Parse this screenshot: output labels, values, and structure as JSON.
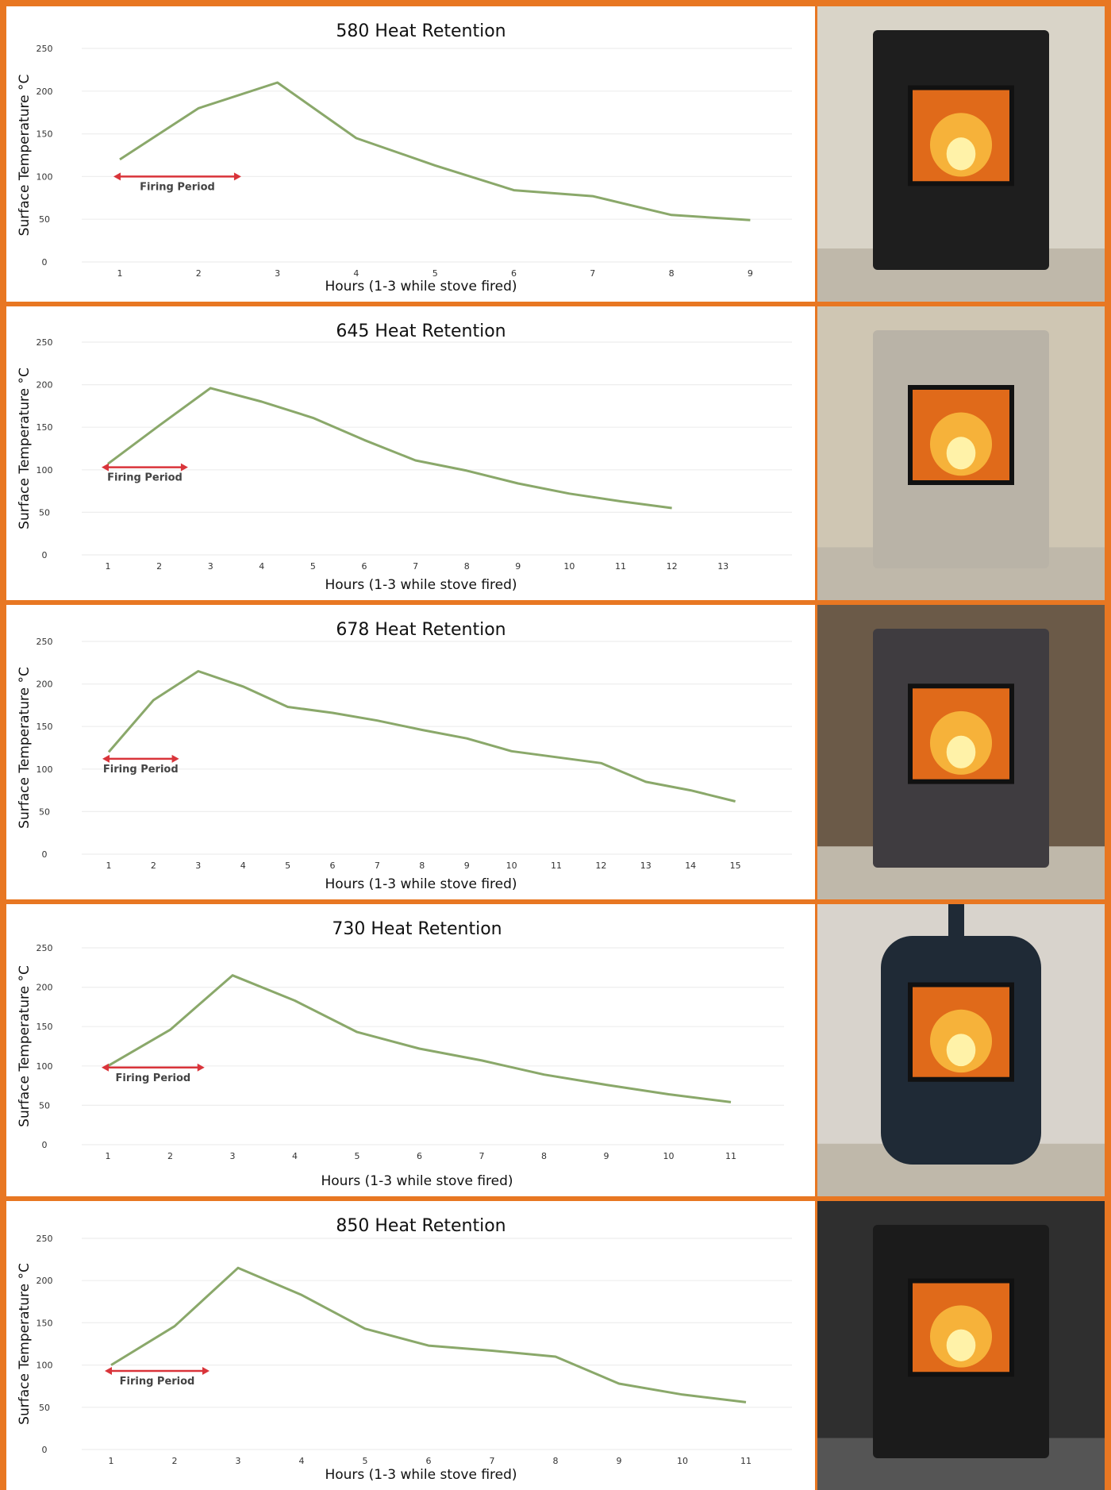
{
  "colors": {
    "border": "#e87722",
    "line": "#8aa86a",
    "arrow": "#d9343a",
    "grid": "#eeeeee",
    "tick_text": "#333333",
    "title_text": "#111111"
  },
  "chart_data": [
    {
      "type": "line",
      "title": "580 Heat Retention",
      "xlabel": "Hours (1-3 while stove fired)",
      "ylabel": "Surface Temperature °C",
      "x": [
        1,
        2,
        3,
        4,
        5,
        6,
        7,
        8,
        9
      ],
      "series": [
        {
          "values": [
            120,
            180,
            210,
            145,
            113,
            84,
            77,
            55,
            49
          ]
        }
      ],
      "ylim": [
        0,
        250
      ],
      "yticks": [
        0,
        50,
        100,
        150,
        200,
        250
      ],
      "grid": true,
      "annotation": {
        "text": "Firing Period",
        "from": 1,
        "to": 2.5,
        "y": 100
      },
      "photo": "black stove"
    },
    {
      "type": "line",
      "title": "645 Heat Retention",
      "xlabel": "Hours (1-3 while stove fired)",
      "ylabel": "Surface Temperature °C",
      "x": [
        1,
        2,
        3,
        4,
        5,
        6,
        7,
        8,
        9,
        10,
        11,
        12,
        13
      ],
      "series": [
        {
          "values": [
            107,
            152,
            196,
            180,
            161,
            135,
            111,
            99,
            84,
            72,
            63,
            55,
            null
          ]
        }
      ],
      "ylim": [
        0,
        250
      ],
      "yticks": [
        0,
        50,
        100,
        150,
        200,
        250
      ],
      "grid": true,
      "annotation": {
        "text": "Firing Period",
        "from": 1,
        "to": 2.5,
        "y": 103
      },
      "photo": "grey tiled stove"
    },
    {
      "type": "line",
      "title": "678 Heat Retention",
      "xlabel": "Hours (1-3 while stove fired)",
      "ylabel": "Surface Temperature °C",
      "x": [
        1,
        2,
        3,
        4,
        5,
        6,
        7,
        8,
        9,
        10,
        11,
        12,
        13,
        14,
        15
      ],
      "series": [
        {
          "values": [
            120,
            181,
            215,
            197,
            173,
            166,
            157,
            146,
            136,
            121,
            114,
            107,
            85,
            75,
            62
          ]
        }
      ],
      "ylim": [
        0,
        250
      ],
      "yticks": [
        0,
        50,
        100,
        150,
        200,
        250
      ],
      "grid": true,
      "annotation": {
        "text": "Firing Period",
        "from": 1,
        "to": 2.5,
        "y": 112
      },
      "photo": "dark tiled stove"
    },
    {
      "type": "line",
      "title": "730 Heat Retention",
      "xlabel": "Hours (1-3 while stove fired)",
      "ylabel": "Surface Temperature °C",
      "x": [
        1,
        2,
        3,
        4,
        5,
        6,
        7,
        8,
        9,
        10,
        11
      ],
      "series": [
        {
          "values": [
            100,
            146,
            215,
            183,
            143,
            122,
            107,
            89,
            76,
            64,
            54
          ]
        }
      ],
      "ylim": [
        0,
        250
      ],
      "yticks": [
        0,
        50,
        100,
        150,
        200,
        250
      ],
      "grid": true,
      "annotation": {
        "text": "Firing Period",
        "from": 1,
        "to": 2.5,
        "y": 98
      },
      "photo": "round black stove"
    },
    {
      "type": "line",
      "title": "850 Heat Retention",
      "xlabel": "Hours (1-3 while stove fired)",
      "ylabel": "Surface Temperature °C",
      "x": [
        1,
        2,
        3,
        4,
        5,
        6,
        7,
        8,
        9,
        10,
        11
      ],
      "series": [
        {
          "values": [
            100,
            146,
            215,
            183,
            143,
            123,
            117,
            110,
            78,
            65,
            56
          ]
        }
      ],
      "ylim": [
        0,
        250
      ],
      "yticks": [
        0,
        50,
        100,
        150,
        200,
        250
      ],
      "grid": true,
      "annotation": {
        "text": "Firing Period",
        "from": 1,
        "to": 2.5,
        "y": 93
      },
      "photo": "black stove with chrome bands"
    }
  ]
}
